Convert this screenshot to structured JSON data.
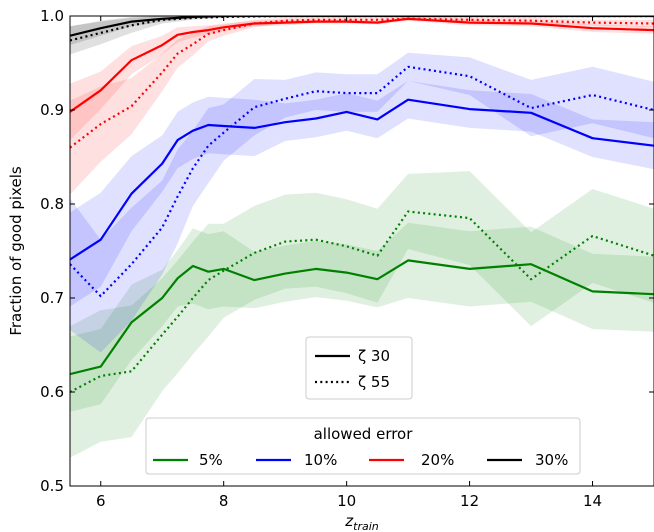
{
  "chart_data": {
    "type": "line",
    "xlabel_main": "z",
    "xlabel_sub": "train",
    "ylabel": "Fraction of good pixels",
    "xlim": [
      5.5,
      15
    ],
    "ylim": [
      0.5,
      1.0
    ],
    "xticks": [
      6,
      8,
      10,
      12,
      14
    ],
    "yticks": [
      0.5,
      0.6,
      0.7,
      0.8,
      0.9,
      1.0
    ],
    "xtick_labels": [
      "6",
      "8",
      "10",
      "12",
      "14"
    ],
    "ytick_labels": [
      "0.5",
      "0.6",
      "0.7",
      "0.8",
      "0.9",
      "1.0"
    ],
    "grid": false,
    "linestyle_legend": {
      "placement": "center",
      "entries": [
        {
          "label": "ζ 30",
          "style": "solid"
        },
        {
          "label": "ζ 55",
          "style": "dotted"
        }
      ]
    },
    "color_legend": {
      "title": "allowed error",
      "placement": "lower center",
      "entries": [
        {
          "label": "5%",
          "color": "#008000"
        },
        {
          "label": "10%",
          "color": "#0000ff"
        },
        {
          "label": "20%",
          "color": "#ff0000"
        },
        {
          "label": "30%",
          "color": "#000000"
        }
      ]
    },
    "series": [
      {
        "group": "5%",
        "style": "solid",
        "color": "#008000",
        "x": [
          5.5,
          6,
          6.5,
          7,
          7.25,
          7.5,
          7.75,
          8,
          8.5,
          9,
          9.5,
          10,
          10.5,
          11,
          12,
          13,
          14,
          15
        ],
        "y": [
          0.619,
          0.627,
          0.674,
          0.7,
          0.721,
          0.734,
          0.728,
          0.731,
          0.719,
          0.726,
          0.731,
          0.727,
          0.72,
          0.74,
          0.731,
          0.736,
          0.707,
          0.704
        ],
        "band_width": [
          0.04,
          0.04,
          0.04,
          0.03,
          0.03,
          0.04,
          0.04,
          0.04,
          0.03,
          0.03,
          0.03,
          0.03,
          0.03,
          0.04,
          0.04,
          0.04,
          0.04,
          0.04
        ]
      },
      {
        "group": "5%",
        "style": "dotted",
        "color": "#008000",
        "x": [
          5.5,
          6,
          6.5,
          7,
          7.25,
          7.5,
          7.75,
          8,
          8.5,
          9,
          9.5,
          10,
          10.5,
          11,
          12,
          13,
          14,
          15
        ],
        "y": [
          0.6,
          0.617,
          0.622,
          0.661,
          0.68,
          0.7,
          0.719,
          0.729,
          0.748,
          0.76,
          0.762,
          0.755,
          0.745,
          0.792,
          0.785,
          0.72,
          0.766,
          0.745
        ],
        "band_width": [
          0.07,
          0.07,
          0.07,
          0.06,
          0.06,
          0.06,
          0.06,
          0.05,
          0.05,
          0.05,
          0.05,
          0.05,
          0.05,
          0.04,
          0.05,
          0.05,
          0.05,
          0.05
        ]
      },
      {
        "group": "10%",
        "style": "solid",
        "color": "#0000ff",
        "x": [
          5.5,
          6,
          6.5,
          7,
          7.25,
          7.5,
          7.75,
          8,
          8.5,
          9,
          9.5,
          10,
          10.5,
          11,
          12,
          13,
          14,
          15
        ],
        "y": [
          0.741,
          0.762,
          0.811,
          0.843,
          0.868,
          0.878,
          0.884,
          0.883,
          0.881,
          0.887,
          0.891,
          0.898,
          0.89,
          0.911,
          0.901,
          0.897,
          0.87,
          0.862
        ],
        "band_width": [
          0.05,
          0.05,
          0.04,
          0.03,
          0.03,
          0.03,
          0.03,
          0.03,
          0.03,
          0.02,
          0.02,
          0.02,
          0.02,
          0.02,
          0.02,
          0.02,
          0.02,
          0.025
        ]
      },
      {
        "group": "10%",
        "style": "dotted",
        "color": "#0000ff",
        "x": [
          5.5,
          6,
          6.5,
          7,
          7.25,
          7.5,
          7.75,
          8,
          8.5,
          9,
          9.5,
          10,
          10.5,
          11,
          12,
          13,
          14,
          15
        ],
        "y": [
          0.736,
          0.702,
          0.736,
          0.775,
          0.808,
          0.838,
          0.862,
          0.876,
          0.903,
          0.912,
          0.92,
          0.918,
          0.918,
          0.946,
          0.936,
          0.902,
          0.916,
          0.9
        ],
        "band_width": [
          0.07,
          0.06,
          0.06,
          0.05,
          0.05,
          0.04,
          0.04,
          0.03,
          0.03,
          0.02,
          0.02,
          0.02,
          0.02,
          0.015,
          0.02,
          0.03,
          0.03,
          0.03
        ]
      },
      {
        "group": "20%",
        "style": "solid",
        "color": "#ff0000",
        "x": [
          5.5,
          6,
          6.5,
          7,
          7.25,
          7.5,
          7.75,
          8,
          8.5,
          9,
          9.5,
          10,
          10.5,
          11,
          12,
          13,
          14,
          15
        ],
        "y": [
          0.898,
          0.921,
          0.953,
          0.969,
          0.98,
          0.983,
          0.985,
          0.988,
          0.992,
          0.993,
          0.994,
          0.994,
          0.993,
          0.997,
          0.993,
          0.992,
          0.987,
          0.985
        ],
        "band_width": [
          0.03,
          0.02,
          0.015,
          0.01,
          0.008,
          0.006,
          0.005,
          0.004,
          0.003,
          0.003,
          0.002,
          0.002,
          0.002,
          0.002,
          0.003,
          0.003,
          0.004,
          0.004
        ]
      },
      {
        "group": "20%",
        "style": "dotted",
        "color": "#ff0000",
        "x": [
          5.5,
          6,
          6.5,
          7,
          7.25,
          7.5,
          7.75,
          8,
          8.5,
          9,
          9.5,
          10,
          10.5,
          11,
          12,
          13,
          14,
          15
        ],
        "y": [
          0.86,
          0.885,
          0.904,
          0.94,
          0.96,
          0.97,
          0.981,
          0.985,
          0.992,
          0.995,
          0.996,
          0.996,
          0.996,
          0.997,
          0.996,
          0.995,
          0.993,
          0.992
        ],
        "band_width": [
          0.05,
          0.04,
          0.03,
          0.02,
          0.015,
          0.012,
          0.008,
          0.006,
          0.004,
          0.003,
          0.002,
          0.002,
          0.002,
          0.002,
          0.002,
          0.003,
          0.003,
          0.004
        ]
      },
      {
        "group": "30%",
        "style": "solid",
        "color": "#000000",
        "x": [
          5.5,
          6,
          6.5,
          7,
          7.5,
          8,
          9,
          10,
          11,
          12,
          13,
          14,
          15
        ],
        "y": [
          0.979,
          0.987,
          0.994,
          0.997,
          0.999,
          1.0,
          1.0,
          1.0,
          1.0,
          1.0,
          1.0,
          1.0,
          1.0
        ],
        "band_width": [
          0.01,
          0.008,
          0.005,
          0.003,
          0.002,
          0.001,
          0.0,
          0.0,
          0.0,
          0.0,
          0.0,
          0.0,
          0.0
        ]
      },
      {
        "group": "30%",
        "style": "dotted",
        "color": "#000000",
        "x": [
          5.5,
          6,
          6.5,
          7,
          7.5,
          8,
          9,
          10,
          11,
          12,
          13,
          14,
          15
        ],
        "y": [
          0.974,
          0.982,
          0.99,
          0.996,
          0.998,
          0.999,
          1.0,
          1.0,
          1.0,
          1.0,
          1.0,
          1.0,
          1.0
        ],
        "band_width": [
          0.015,
          0.012,
          0.008,
          0.004,
          0.002,
          0.001,
          0.0,
          0.0,
          0.0,
          0.0,
          0.0,
          0.0,
          0.0
        ]
      }
    ]
  }
}
